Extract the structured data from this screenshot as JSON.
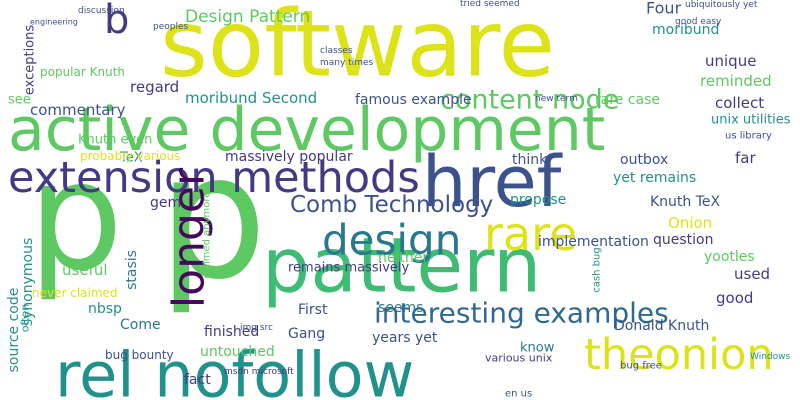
{
  "words": [
    "software",
    "active development",
    "p",
    "p",
    "extension methods",
    "href",
    "pattern",
    "rel nofollow",
    "theonion",
    "longer",
    "design",
    "rare",
    "interesting examples",
    "content node",
    "b",
    "Comb Technology",
    "Design Pattern",
    "Four",
    "moribund",
    "unique",
    "reminded",
    "collect",
    "unix utilities",
    "us library",
    "commentary",
    "popular Knuth",
    "regard",
    "moribund Second",
    "famous example",
    "rare case",
    "Knuth even",
    "TeX",
    "massively popular",
    "think",
    "outbox",
    "far",
    "yet remains",
    "propose",
    "Knuth TeX",
    "gem",
    "Onion",
    "implementation",
    "question",
    "neither",
    "yootles",
    "used",
    "good",
    "useful",
    "synonymous",
    "source code",
    "stasis",
    "nbsp",
    "Come",
    "First",
    "seems",
    "Gang",
    "finished",
    "Donald Knuth",
    "untouched",
    "fact",
    "years yet",
    "know",
    "bug bounty",
    "remains massively",
    "never claimed",
    "probably various",
    "exceptions",
    "see",
    "discussion",
    "engineering",
    "often",
    "various unix",
    "bug free",
    "en us",
    "new term",
    "ubiquitously yet",
    "good easy",
    "Windows",
    "claimed anymore",
    "cash bug",
    "msdn microsoft",
    "img src",
    "tried seemed",
    "classes",
    "many times",
    "peoples"
  ]
}
